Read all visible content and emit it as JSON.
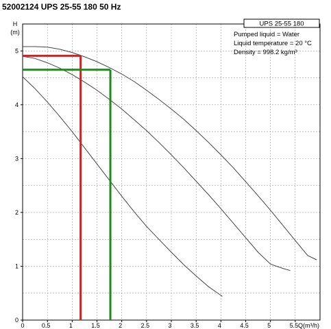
{
  "title": "52002124 UPS 25-55 180 50 Hz",
  "chart_data": {
    "type": "line",
    "xlabel": "Q(m³/h)",
    "ylabel": "H",
    "ylabel_unit": "(m)",
    "xlim": [
      0,
      6
    ],
    "ylim": [
      0,
      5.5
    ],
    "x_ticks": [
      0,
      0.5,
      1,
      1.5,
      2,
      2.5,
      3,
      3.5,
      4,
      4.5,
      5,
      5.5
    ],
    "x_tick_labels": [
      "0",
      "0.5",
      "1",
      "1.5",
      "2",
      "2.5",
      "3",
      "3.5",
      "4",
      "4.5",
      "5",
      "5.5"
    ],
    "y_ticks": [
      0,
      1,
      2,
      3,
      4,
      5
    ],
    "y_tick_labels": [
      "0",
      "1",
      "2",
      "3",
      "4",
      "5"
    ],
    "grid": true,
    "grid_style": "dashed",
    "legend": {
      "title": "UPS 25-55 180",
      "lines": [
        "Pumped liquid = Water",
        "Liquid temperature = 20 °C",
        "Density = 998.2 kg/m³"
      ],
      "placement": "top-right"
    },
    "series": [
      {
        "color": "#444444",
        "x": [
          0,
          0.25,
          0.5,
          0.75,
          1,
          1.25,
          1.5,
          1.75,
          2,
          2.25,
          2.5,
          2.75,
          3,
          3.25,
          3.5,
          3.75,
          4,
          4.25,
          4.5,
          4.75,
          5,
          5.25,
          5.5,
          5.75,
          5.93
        ],
        "y": [
          5.08,
          5.08,
          5.07,
          5.03,
          4.97,
          4.89,
          4.8,
          4.69,
          4.57,
          4.43,
          4.27,
          4.1,
          3.92,
          3.73,
          3.52,
          3.3,
          3.07,
          2.83,
          2.57,
          2.31,
          2.04,
          1.76,
          1.48,
          1.2,
          1.12
        ]
      },
      {
        "color": "#444444",
        "x": [
          0,
          0.25,
          0.5,
          0.75,
          1,
          1.25,
          1.5,
          1.75,
          2,
          2.25,
          2.5,
          2.75,
          3,
          3.25,
          3.5,
          3.75,
          4,
          4.25,
          4.5,
          4.75,
          5,
          5.25,
          5.4
        ],
        "y": [
          4.9,
          4.86,
          4.78,
          4.68,
          4.56,
          4.42,
          4.27,
          4.1,
          3.92,
          3.72,
          3.52,
          3.3,
          3.07,
          2.83,
          2.58,
          2.33,
          2.07,
          1.8,
          1.53,
          1.26,
          1.04,
          0.96,
          0.92
        ]
      },
      {
        "color": "#444444",
        "x": [
          0,
          0.25,
          0.5,
          0.75,
          1,
          1.25,
          1.5,
          1.75,
          2,
          2.25,
          2.5,
          2.75,
          3,
          3.25,
          3.5,
          3.75,
          4,
          4.03
        ],
        "y": [
          4.52,
          4.3,
          4.05,
          3.78,
          3.5,
          3.2,
          2.9,
          2.6,
          2.3,
          2.01,
          1.74,
          1.5,
          1.26,
          1.03,
          0.82,
          0.62,
          0.46,
          0.44
        ]
      }
    ],
    "operating_points": [
      {
        "color": "#d42020",
        "x": 1.17,
        "y": 4.91
      },
      {
        "color": "#1e8a1e",
        "x": 1.77,
        "y": 4.65
      }
    ]
  }
}
